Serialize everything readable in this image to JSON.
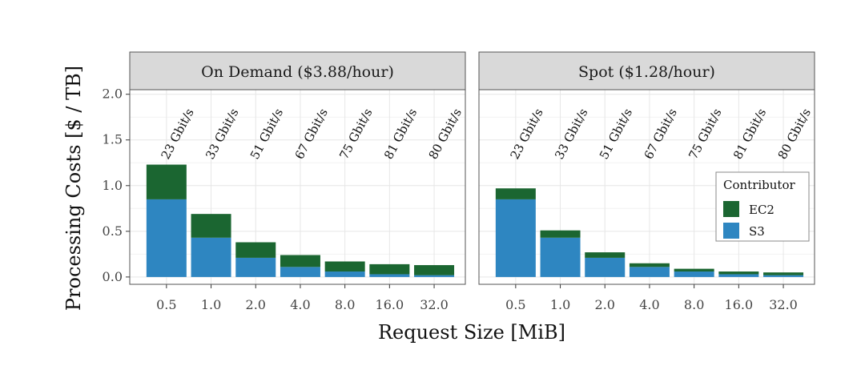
{
  "chart_data": {
    "type": "bar",
    "stacked": true,
    "xlabel": "Request Size [MiB]",
    "ylabel": "Processing Costs [$ / TB]",
    "categories": [
      "0.5",
      "1.0",
      "2.0",
      "4.0",
      "8.0",
      "16.0",
      "32.0"
    ],
    "y_ticks": [
      "0.0",
      "0.5",
      "1.0",
      "1.5",
      "2.0"
    ],
    "ylim": [
      -0.08,
      2.05
    ],
    "grid": true,
    "bar_labels": [
      "23 Gbit/s",
      "33 Gbit/s",
      "51 Gbit/s",
      "67 Gbit/s",
      "75 Gbit/s",
      "81 Gbit/s",
      "80 Gbit/s"
    ],
    "legend": {
      "title": "Contributor",
      "placement": "right",
      "items": [
        {
          "name": "EC2",
          "color": "#1b6631"
        },
        {
          "name": "S3",
          "color": "#2e86c1"
        }
      ]
    },
    "panels": [
      {
        "title": "On Demand ($3.88/hour)",
        "series": [
          {
            "name": "S3",
            "values": [
              0.85,
              0.43,
              0.21,
              0.11,
              0.06,
              0.03,
              0.02
            ]
          },
          {
            "name": "EC2",
            "values": [
              0.38,
              0.26,
              0.17,
              0.13,
              0.11,
              0.11,
              0.11
            ]
          }
        ]
      },
      {
        "title": "Spot ($1.28/hour)",
        "series": [
          {
            "name": "S3",
            "values": [
              0.85,
              0.43,
              0.21,
              0.11,
              0.06,
              0.03,
              0.02
            ]
          },
          {
            "name": "EC2",
            "values": [
              0.12,
              0.08,
              0.06,
              0.04,
              0.03,
              0.03,
              0.03
            ]
          }
        ]
      }
    ]
  },
  "colors": {
    "strip_bg": "#d9d9d9",
    "panel_bg": "#ffffff",
    "grid_major": "#e6e6e6",
    "grid_minor": "#f2f2f2",
    "border": "#555555"
  }
}
